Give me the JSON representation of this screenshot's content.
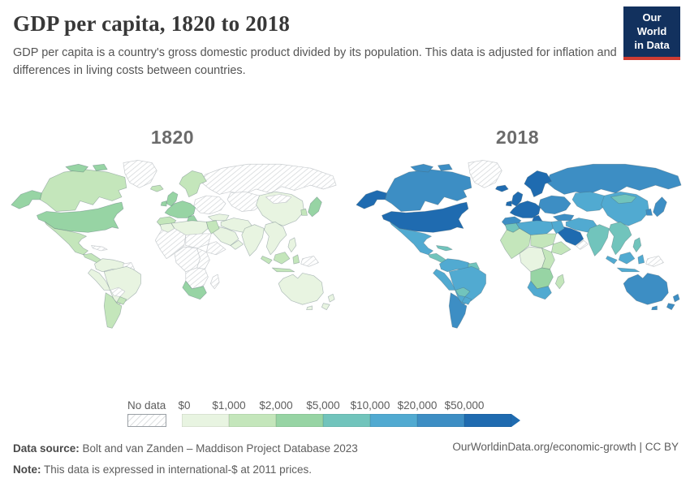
{
  "header": {
    "title": "GDP per capita, 1820 to 2018",
    "subtitle": "GDP per capita is a country's gross domestic product divided by its population. This data is adjusted for inflation and differences in living costs between countries.",
    "logo_line1": "Our World",
    "logo_line2": "in Data",
    "logo_bg": "#12315e",
    "logo_accent": "#cf3c32"
  },
  "chart_data": {
    "type": "heatmap",
    "subtype": "choropleth-world-map-pair",
    "title": "GDP per capita, 1820 to 2018",
    "unit": "international-$ at 2011 prices",
    "legend_ticks": [
      "$0",
      "$1,000",
      "$2,000",
      "$5,000",
      "$10,000",
      "$20,000",
      "$50,000"
    ],
    "band_colors": [
      "#e8f4e1",
      "#c4e6bb",
      "#97d4a4",
      "#71c4bc",
      "#51aad1",
      "#3d8ec4",
      "#1f6bb0"
    ],
    "bands": [
      "$0-$1,000",
      "$1,000-$2,000",
      "$2,000-$5,000",
      "$5,000-$10,000",
      "$10,000-$20,000",
      "$20,000-$50,000",
      "$50,000+"
    ],
    "no_data_label": "No data",
    "maps": [
      {
        "year": "1820",
        "regions": {
          "alaska": 2,
          "canada": 1,
          "canada-islands": 2,
          "greenland": "nodata",
          "usa": 2,
          "mexico": 1,
          "central-america": 1,
          "cuba": "nodata",
          "colombia-venezuela": 0,
          "guianas": "nodata",
          "peru": 0,
          "brazil": 0,
          "bolivia": "nodata",
          "paraguay-uruguay": 1,
          "argentina-chile": 1,
          "iceland": 1,
          "uk": 2,
          "ireland": 2,
          "scandinavia": 1,
          "western-europe": 2,
          "iberia": 1,
          "italy": 2,
          "eastern-europe": "nodata",
          "russia": "nodata",
          "central-asia": "nodata",
          "china": 0,
          "mongolia": "nodata",
          "japan": 2,
          "korea": 1,
          "turkey": 0,
          "levant-iraq-iran": 0,
          "saudi-arabia": 0,
          "yemen-oman": 0,
          "india": 0,
          "se-asia": 0,
          "philippines": 0,
          "indonesia": 1,
          "png": "nodata",
          "australia": 0,
          "tasmania": 0,
          "new-zealand": 0,
          "morocco": 0,
          "algeria-libya": 0,
          "egypt": 1,
          "west-africa": "nodata",
          "sahel-sudan": "nodata",
          "horn": "nodata",
          "central-africa": "nodata",
          "east-africa": "nodata",
          "southern-africa": "nodata",
          "south-africa": 2,
          "madagascar": "nodata"
        }
      },
      {
        "year": "2018",
        "regions": {
          "alaska": 6,
          "canada": 5,
          "canada-islands": 5,
          "greenland": "nodata",
          "usa": 6,
          "mexico": 4,
          "central-america": 3,
          "cuba": 3,
          "colombia-venezuela": 4,
          "guianas": 3,
          "peru": 4,
          "brazil": 4,
          "bolivia": 3,
          "paraguay-uruguay": 4,
          "argentina-chile": 5,
          "iceland": 6,
          "uk": 6,
          "ireland": 6,
          "scandinavia": 6,
          "western-europe": 6,
          "iberia": 5,
          "italy": 6,
          "eastern-europe": 5,
          "russia": 5,
          "central-asia": 4,
          "china": 4,
          "mongolia": 3,
          "japan": 5,
          "korea": 5,
          "turkey": 5,
          "levant-iraq-iran": 4,
          "saudi-arabia": 6,
          "yemen-oman": "nodata",
          "india": 3,
          "se-asia": 3,
          "philippines": 3,
          "indonesia": 4,
          "png": "nodata",
          "australia": 5,
          "tasmania": 5,
          "new-zealand": 5,
          "morocco": 3,
          "algeria-libya": 4,
          "egypt": 4,
          "west-africa": 1,
          "sahel-sudan": 1,
          "horn": 1,
          "central-africa": 0,
          "east-africa": 1,
          "southern-africa": 2,
          "south-africa": 4,
          "madagascar": 1
        }
      }
    ]
  },
  "footer": {
    "data_source_label": "Data source:",
    "data_source": "Bolt and van Zanden – Maddison Project Database 2023",
    "note_label": "Note:",
    "note": "This data is expressed in international-$ at 2011 prices.",
    "link": "OurWorldinData.org/economic-growth | CC BY"
  }
}
